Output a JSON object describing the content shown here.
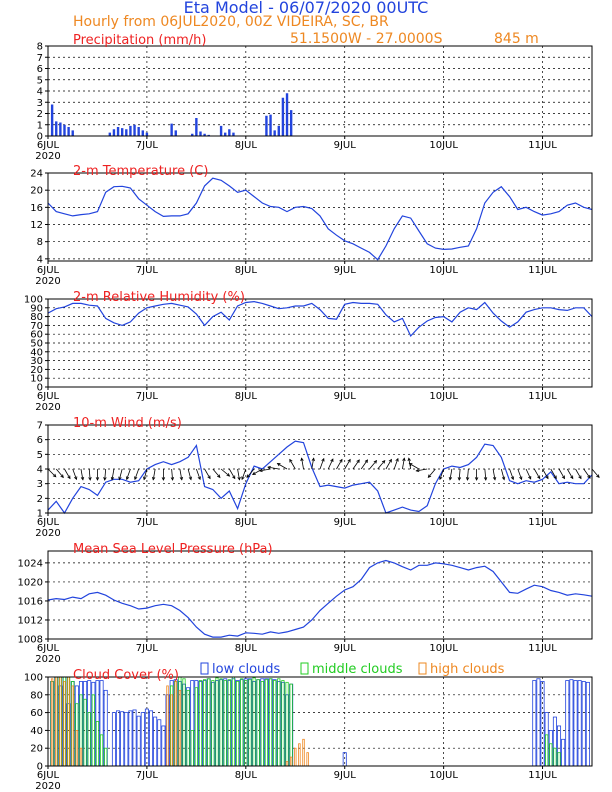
{
  "header": {
    "title": "Eta Model - 06/07/2020 00UTC",
    "subtitle": "Hourly from 06JUL2020, 00Z  VIDEIRA, SC, BR",
    "coords": "51.1500W - 27.0000S",
    "elevation": "845  m"
  },
  "colors": {
    "title": "#2244dd",
    "orange": "#ee8822",
    "red": "#ee2222",
    "blue": "#2244dd",
    "green": "#22cc22",
    "bars": "#2244dd",
    "arrow": "#000000"
  },
  "time_axis": {
    "xlim_hours": [
      0,
      132
    ],
    "ticks": [
      {
        "hour": 0,
        "label": "6JUL",
        "sub": "2020"
      },
      {
        "hour": 24,
        "label": "7JUL",
        "sub": ""
      },
      {
        "hour": 48,
        "label": "8JUL",
        "sub": ""
      },
      {
        "hour": 72,
        "label": "9JUL",
        "sub": ""
      },
      {
        "hour": 96,
        "label": "10JUL",
        "sub": ""
      },
      {
        "hour": 120,
        "label": "11JUL",
        "sub": ""
      }
    ]
  },
  "chart_data": [
    {
      "type": "bar",
      "title": "Precipitation (mm/h)",
      "ylim": [
        0,
        8
      ],
      "yticks": [
        0,
        1,
        2,
        3,
        4,
        5,
        6,
        7,
        8
      ],
      "x": [
        1,
        2,
        3,
        4,
        5,
        6,
        15,
        16,
        17,
        18,
        19,
        20,
        21,
        22,
        23,
        24,
        30,
        31,
        35,
        36,
        37,
        38,
        39,
        42,
        43,
        44,
        45,
        53,
        54,
        55,
        56,
        57,
        58,
        59
      ],
      "values": [
        2.8,
        1.3,
        1.2,
        1.0,
        0.8,
        0.5,
        0.3,
        0.6,
        0.8,
        0.7,
        0.6,
        0.9,
        1.0,
        0.8,
        0.5,
        0.3,
        1.1,
        0.5,
        0.2,
        1.6,
        0.4,
        0.2,
        0.1,
        0.9,
        0.3,
        0.6,
        0.3,
        1.8,
        1.9,
        0.5,
        0.9,
        3.4,
        3.8,
        2.3
      ]
    },
    {
      "type": "line",
      "title": "2-m Temperature (C)",
      "ylim": [
        3.5,
        24
      ],
      "yticks": [
        4,
        8,
        12,
        16,
        20,
        24
      ],
      "x": [
        0,
        2,
        4,
        6,
        8,
        10,
        12,
        14,
        16,
        18,
        20,
        22,
        24,
        26,
        28,
        30,
        32,
        34,
        36,
        38,
        40,
        42,
        44,
        46,
        48,
        50,
        52,
        54,
        56,
        58,
        60,
        62,
        64,
        66,
        68,
        70,
        72,
        74,
        76,
        78,
        80,
        82,
        84,
        86,
        88,
        90,
        92,
        94,
        96,
        98,
        100,
        102,
        104,
        106,
        108,
        110,
        112,
        114,
        116,
        118,
        120,
        122,
        124,
        126,
        128,
        130,
        132
      ],
      "values": [
        17,
        15,
        14.5,
        14,
        14.3,
        14.5,
        15,
        19.5,
        20.8,
        20.9,
        20.5,
        18,
        16.5,
        15,
        13.9,
        14,
        14,
        14.5,
        17,
        21,
        22.8,
        22.3,
        21,
        19.5,
        20,
        18.5,
        17,
        16.2,
        16,
        15,
        16,
        16.2,
        15.7,
        14,
        11,
        9.5,
        8.2,
        7.5,
        6.5,
        5.5,
        3.8,
        7,
        11,
        14,
        13.5,
        10.5,
        7.5,
        6.5,
        6.2,
        6.3,
        6.7,
        7,
        11,
        17,
        19.5,
        20.8,
        18.5,
        15.5,
        16,
        15,
        14.2,
        14.5,
        15,
        16.5,
        17,
        16,
        15.5
      ]
    },
    {
      "type": "line",
      "title": "2-m Relative Humidity (%)",
      "ylim": [
        0,
        100
      ],
      "yticks": [
        0,
        10,
        20,
        30,
        40,
        50,
        60,
        70,
        80,
        90,
        100
      ],
      "x": [
        0,
        2,
        4,
        6,
        8,
        10,
        12,
        14,
        16,
        18,
        20,
        22,
        24,
        26,
        28,
        30,
        32,
        34,
        36,
        38,
        40,
        42,
        44,
        46,
        48,
        50,
        52,
        54,
        56,
        58,
        60,
        62,
        64,
        66,
        68,
        70,
        72,
        74,
        76,
        78,
        80,
        82,
        84,
        86,
        88,
        90,
        92,
        94,
        96,
        98,
        100,
        102,
        104,
        106,
        108,
        110,
        112,
        114,
        116,
        118,
        120,
        122,
        124,
        126,
        128,
        130,
        132
      ],
      "values": [
        84,
        89,
        91,
        95,
        95,
        93,
        92,
        78,
        73,
        70,
        74,
        84,
        90,
        92,
        94,
        95,
        93,
        91,
        83,
        70,
        80,
        85,
        76,
        92,
        96,
        97,
        95,
        92,
        89,
        90,
        92,
        92,
        95,
        88,
        78,
        77,
        94,
        96,
        95,
        95,
        94,
        82,
        74,
        78,
        58,
        68,
        75,
        79,
        80,
        74,
        85,
        90,
        88,
        96,
        84,
        75,
        68,
        74,
        85,
        88,
        90,
        90,
        88,
        87,
        90,
        90,
        80
      ]
    },
    {
      "type": "line",
      "title": "10-m Wind (m/s)",
      "ylim": [
        1,
        7
      ],
      "yticks": [
        1,
        2,
        3,
        4,
        5,
        6,
        7
      ],
      "x": [
        0,
        2,
        4,
        6,
        8,
        10,
        12,
        14,
        16,
        18,
        20,
        22,
        24,
        26,
        28,
        30,
        32,
        34,
        36,
        38,
        40,
        42,
        44,
        46,
        48,
        50,
        52,
        54,
        56,
        58,
        60,
        62,
        64,
        66,
        68,
        70,
        72,
        74,
        76,
        78,
        80,
        82,
        84,
        86,
        88,
        90,
        92,
        94,
        96,
        98,
        100,
        102,
        104,
        106,
        108,
        110,
        112,
        114,
        116,
        118,
        120,
        122,
        124,
        126,
        128,
        130,
        132
      ],
      "values": [
        1.2,
        1.8,
        1,
        2,
        2.8,
        2.6,
        2.2,
        3.1,
        3.3,
        3.3,
        3.1,
        3.2,
        4,
        4.3,
        4.5,
        4.3,
        4.5,
        4.8,
        5.6,
        2.8,
        2.6,
        2,
        2.5,
        1.3,
        3,
        4.2,
        4,
        4.5,
        5,
        5.5,
        5.9,
        5.8,
        4.1,
        2.8,
        2.9,
        2.8,
        2.7,
        2.9,
        3,
        3.1,
        2.5,
        1,
        1.2,
        1.4,
        1.2,
        1.1,
        1.5,
        3,
        4,
        4.2,
        4.1,
        4.3,
        4.8,
        5.7,
        5.6,
        4.8,
        3.2,
        3,
        3.2,
        3.1,
        3.3,
        3.8,
        3,
        3.1,
        3,
        3,
        3.6
      ],
      "arrow_directions_deg": [
        135,
        140,
        150,
        160,
        170,
        175,
        180,
        185,
        190,
        195,
        200,
        200,
        195,
        190,
        180,
        175,
        170,
        165,
        160,
        150,
        140,
        130,
        150,
        170,
        200,
        220,
        240,
        260,
        280,
        300,
        330,
        350,
        10,
        20,
        25,
        30,
        30,
        35,
        35,
        40,
        40,
        30,
        20,
        10,
        350,
        300,
        260,
        220,
        200,
        190,
        185,
        185,
        180,
        175,
        170,
        165,
        160,
        160,
        155,
        150,
        150,
        150,
        150,
        150,
        150,
        145,
        140
      ]
    },
    {
      "type": "line",
      "title": "Mean Sea Level Pressure (hPa)",
      "ylim": [
        1008,
        1026.5
      ],
      "yticks": [
        1008,
        1012,
        1016,
        1020,
        1024
      ],
      "x": [
        0,
        2,
        4,
        6,
        8,
        10,
        12,
        14,
        16,
        18,
        20,
        22,
        24,
        26,
        28,
        30,
        32,
        34,
        36,
        38,
        40,
        42,
        44,
        46,
        48,
        50,
        52,
        54,
        56,
        58,
        60,
        62,
        64,
        66,
        68,
        70,
        72,
        74,
        76,
        78,
        80,
        82,
        84,
        86,
        88,
        90,
        92,
        94,
        96,
        98,
        100,
        102,
        104,
        106,
        108,
        110,
        112,
        114,
        116,
        118,
        120,
        122,
        124,
        126,
        128,
        130,
        132
      ],
      "values": [
        1016.2,
        1016.5,
        1016.3,
        1016.8,
        1016.5,
        1017.5,
        1017.8,
        1017.2,
        1016.2,
        1015.5,
        1015,
        1014.3,
        1014.5,
        1015,
        1015.3,
        1015,
        1014,
        1012.5,
        1010.5,
        1009,
        1008.4,
        1008.4,
        1008.8,
        1008.6,
        1009.3,
        1009.2,
        1009,
        1009.5,
        1009.2,
        1009.5,
        1010,
        1010.5,
        1012,
        1014,
        1015.5,
        1017,
        1018.3,
        1019,
        1020.5,
        1023,
        1024,
        1024.5,
        1024,
        1023.2,
        1022.5,
        1023.5,
        1023.5,
        1024,
        1023.8,
        1023.5,
        1023,
        1022.5,
        1023,
        1023.3,
        1022.2,
        1020,
        1017.8,
        1017.6,
        1018.5,
        1019.3,
        1019,
        1018.2,
        1017.8,
        1017.2,
        1017.5,
        1017.3,
        1017
      ]
    },
    {
      "type": "bar",
      "title": "Cloud Cover (%)",
      "ylim": [
        0,
        100
      ],
      "yticks": [
        0,
        20,
        40,
        60,
        80,
        100
      ],
      "legend": [
        "low clouds",
        "middle clouds",
        "high clouds"
      ],
      "series": [
        {
          "name": "low clouds",
          "x": [
            1,
            2,
            3,
            4,
            5,
            6,
            7,
            8,
            9,
            10,
            11,
            12,
            13,
            14,
            16,
            17,
            18,
            19,
            20,
            21,
            22,
            23,
            24,
            25,
            26,
            27,
            28,
            29,
            30,
            31,
            32,
            33,
            34,
            35,
            36,
            37,
            38,
            39,
            40,
            41,
            42,
            43,
            44,
            45,
            46,
            47,
            48,
            49,
            50,
            51,
            52,
            53,
            54,
            55,
            56,
            57,
            58,
            59,
            72,
            118,
            119,
            120,
            121,
            122,
            123,
            124,
            125,
            126,
            127,
            128,
            129,
            130,
            131
          ],
          "values": [
            95,
            100,
            90,
            100,
            70,
            95,
            90,
            95,
            95,
            96,
            94,
            96,
            96,
            85,
            60,
            62,
            61,
            60,
            62,
            63,
            56,
            60,
            64,
            62,
            55,
            52,
            45,
            80,
            96,
            97,
            95,
            92,
            88,
            96,
            96,
            95,
            96,
            98,
            94,
            96,
            97,
            98,
            96,
            98,
            96,
            97,
            98,
            98,
            95,
            97,
            98,
            98,
            98,
            97,
            95,
            94,
            80,
            92,
            15,
            96,
            98,
            95,
            60,
            40,
            55,
            45,
            30,
            96,
            97,
            96,
            96,
            95,
            94
          ]
        },
        {
          "name": "middle clouds",
          "x": [
            1,
            2,
            3,
            4,
            5,
            6,
            7,
            8,
            9,
            10,
            11,
            12,
            13,
            14,
            30,
            31,
            32,
            33,
            34,
            35,
            36,
            37,
            38,
            39,
            40,
            41,
            42,
            43,
            44,
            45,
            46,
            47,
            48,
            49,
            50,
            51,
            52,
            53,
            54,
            55,
            56,
            57,
            58,
            59,
            121,
            122,
            123,
            124
          ],
          "values": [
            95,
            100,
            100,
            100,
            100,
            95,
            70,
            80,
            75,
            60,
            80,
            50,
            35,
            20,
            90,
            95,
            100,
            98,
            85,
            40,
            88,
            96,
            97,
            98,
            96,
            99,
            98,
            96,
            97,
            100,
            95,
            98,
            96,
            97,
            99,
            97,
            95,
            97,
            98,
            96,
            98,
            96,
            94,
            92,
            35,
            25,
            20,
            15
          ]
        },
        {
          "name": "high clouds",
          "x": [
            1,
            2,
            3,
            4,
            5,
            6,
            7,
            8,
            29,
            30,
            31,
            32,
            58,
            59,
            60,
            61,
            62,
            63
          ],
          "values": [
            98,
            100,
            100,
            95,
            100,
            90,
            40,
            20,
            90,
            80,
            95,
            85,
            5,
            10,
            20,
            25,
            30,
            15
          ]
        }
      ]
    }
  ]
}
